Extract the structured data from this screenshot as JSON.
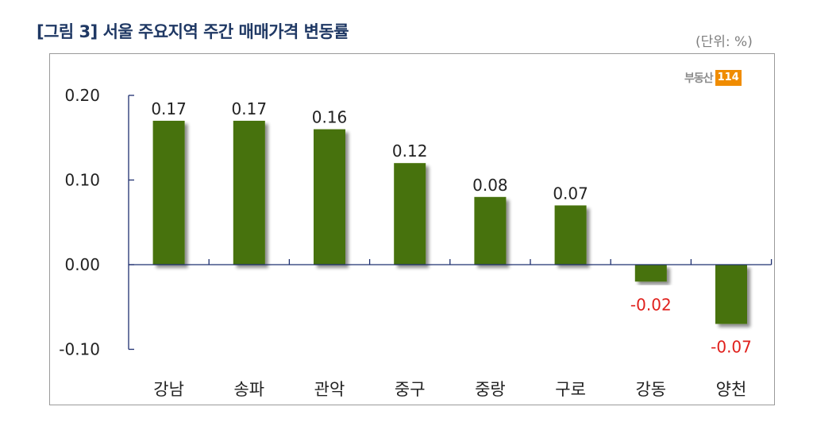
{
  "header": {
    "title": "[그림 3] 서울 주요지역 주간 매매가격 변동률",
    "unit": "(단위: %)"
  },
  "logo": {
    "text": "부동산",
    "badge": "114"
  },
  "colors": {
    "bar": "#467207",
    "axis": "#1f3070",
    "positive_label": "#222222",
    "negative_label": "#e0201c",
    "title": "#1f3864",
    "logo_badge": "#f08c00"
  },
  "chart_data": {
    "type": "bar",
    "title": "[그림 3] 서울 주요지역 주간 매매가격 변동률",
    "unit": "%",
    "categories": [
      "강남",
      "송파",
      "관악",
      "중구",
      "중랑",
      "구로",
      "강동",
      "양천"
    ],
    "values": [
      0.17,
      0.17,
      0.16,
      0.12,
      0.08,
      0.07,
      -0.02,
      -0.07
    ],
    "value_labels": [
      "0.17",
      "0.17",
      "0.16",
      "0.12",
      "0.08",
      "0.07",
      "-0.02",
      "-0.07"
    ],
    "yticks": [
      "0.20",
      "0.10",
      "0.00",
      "-0.10"
    ],
    "ytick_values": [
      0.2,
      0.1,
      0.0,
      -0.1
    ],
    "ylim": [
      -0.1,
      0.2
    ],
    "xlabel": "",
    "ylabel": "",
    "grid": false,
    "legend": null
  }
}
